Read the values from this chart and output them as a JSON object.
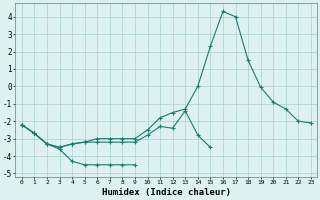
{
  "xlabel": "Humidex (Indice chaleur)",
  "bg_color": "#ddf2f0",
  "grid_color": "#aacfcc",
  "line_color": "#1a7a6e",
  "xlim": [
    -0.5,
    23.5
  ],
  "ylim": [
    -5.2,
    4.8
  ],
  "yticks": [
    -5,
    -4,
    -3,
    -2,
    -1,
    0,
    1,
    2,
    3,
    4
  ],
  "xticks": [
    0,
    1,
    2,
    3,
    4,
    5,
    6,
    7,
    8,
    9,
    10,
    11,
    12,
    13,
    14,
    15,
    16,
    17,
    18,
    19,
    20,
    21,
    22,
    23
  ],
  "line1_y": [
    -2.2,
    -2.7,
    -3.3,
    -3.6,
    -4.3,
    -4.5,
    -4.5,
    -4.5,
    -4.5,
    -4.5,
    null,
    null,
    null,
    null,
    null,
    null,
    null,
    null,
    null,
    null,
    null,
    null,
    null,
    null
  ],
  "line2_y": [
    -2.2,
    -2.7,
    -3.3,
    -3.5,
    -3.3,
    -3.2,
    -3.2,
    -3.2,
    -3.2,
    -3.2,
    -2.8,
    -2.3,
    -2.4,
    -1.4,
    -2.8,
    -3.5,
    null,
    null,
    null,
    null,
    null,
    null,
    null,
    null
  ],
  "line3_y": [
    -2.2,
    -2.7,
    -3.3,
    -3.5,
    -3.3,
    -3.2,
    -3.0,
    -3.0,
    -3.0,
    -3.0,
    -2.5,
    -1.8,
    -1.5,
    -1.3,
    0.0,
    2.3,
    4.3,
    4.0,
    1.5,
    -0.05,
    -0.9,
    -1.3,
    -2.0,
    -2.1
  ]
}
